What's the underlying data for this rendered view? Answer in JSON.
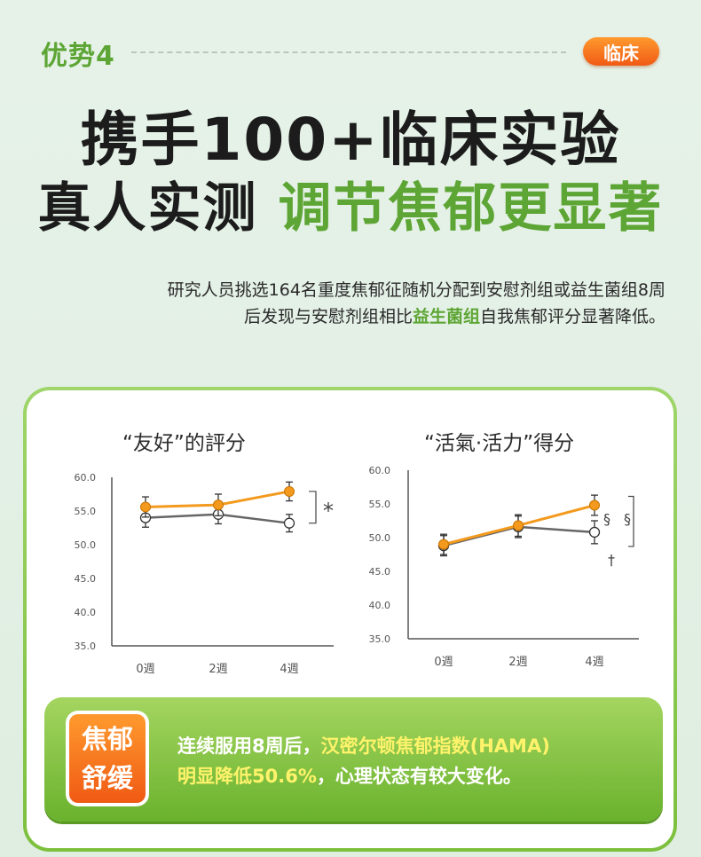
{
  "header": {
    "advantage_label": "优势4",
    "badge_label": "临床"
  },
  "headline": {
    "line1": "携手100+临床实验",
    "line2_dark": "真人实测",
    "line2_green": "调节焦郁更显著"
  },
  "description": {
    "line1": "研究人员挑选164名重度焦郁征随机分配到安慰剂组或益生菌组8周",
    "line2_before": "后发现与安慰剂组相比",
    "line2_highlight": "益生菌组",
    "line2_after": "自我焦郁评分显著降低。"
  },
  "colors": {
    "accent_green": "#5da534",
    "accent_orange": "#f39a1e",
    "placebo_gray": "#666666"
  },
  "chart_data": [
    {
      "type": "line",
      "title": "“友好”的評分",
      "categories": [
        "0週",
        "2週",
        "4週"
      ],
      "ylim": [
        35.0,
        60.0
      ],
      "yticks": [
        "60.0",
        "55.0",
        "50.0",
        "45.0",
        "40.0",
        "35.0"
      ],
      "series": [
        {
          "values": [
            55.6,
            55.9,
            57.9
          ],
          "err": [
            1.5,
            1.6,
            1.4
          ],
          "color": "#f39a1e",
          "marker": "filled"
        },
        {
          "values": [
            54.0,
            54.5,
            53.2
          ],
          "err": [
            1.4,
            1.4,
            1.3
          ],
          "color": "#666666",
          "marker": "open"
        }
      ],
      "annotation": "*"
    },
    {
      "type": "line",
      "title": "“活氣·活力”得分",
      "categories": [
        "0週",
        "2週",
        "4週"
      ],
      "ylim": [
        35.0,
        60.0
      ],
      "yticks": [
        "60.0",
        "55.0",
        "50.0",
        "45.0",
        "40.0",
        "35.0"
      ],
      "series": [
        {
          "values": [
            49.0,
            51.8,
            54.8
          ],
          "err": [
            1.5,
            1.6,
            1.5
          ],
          "color": "#f39a1e",
          "marker": "filled"
        },
        {
          "values": [
            48.8,
            51.6,
            50.8
          ],
          "err": [
            1.5,
            1.6,
            1.7
          ],
          "color": "#666666",
          "marker": "open"
        }
      ],
      "annotations": [
        "§",
        "§",
        "†"
      ]
    }
  ],
  "bottom": {
    "badge_line1": "焦郁",
    "badge_line2": "舒缓",
    "text_line1_white": "连续服用8周后，",
    "text_line1_yellow": "汉密尔顿焦郁指数(HAMA)",
    "text_line2_yellow": "明显降低50.6%",
    "text_line2_white": "，心理状态有较大变化。"
  }
}
